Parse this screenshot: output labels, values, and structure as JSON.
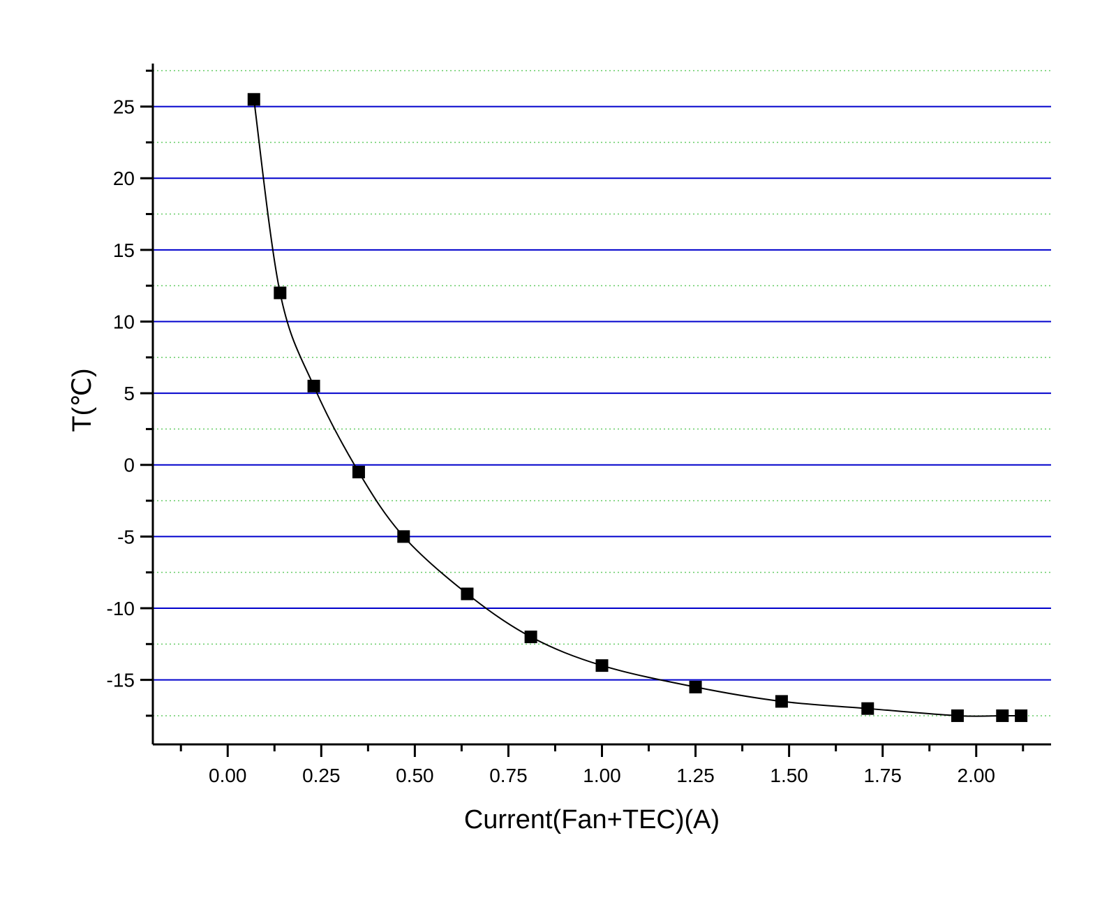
{
  "chart_data": {
    "type": "line",
    "title": "",
    "xlabel": "Current(Fan+TEC)(A)",
    "ylabel": "T(℃)",
    "xlim": [
      -0.2,
      2.2
    ],
    "ylim": [
      -19.5,
      28
    ],
    "x_ticks": [
      0.0,
      0.25,
      0.5,
      0.75,
      1.0,
      1.25,
      1.5,
      1.75,
      2.0
    ],
    "x_tick_labels": [
      "0.00",
      "0.25",
      "0.50",
      "0.75",
      "1.00",
      "1.25",
      "1.50",
      "1.75",
      "2.00"
    ],
    "y_ticks": [
      -15,
      -10,
      -5,
      0,
      5,
      10,
      15,
      20,
      25
    ],
    "y_tick_labels": [
      "-15",
      "-10",
      "-5",
      "0",
      "5",
      "10",
      "15",
      "20",
      "25"
    ],
    "grid": {
      "major": true,
      "major_color": "#0000cc",
      "minor": true,
      "minor_color": "#66cc66"
    },
    "marker": "square",
    "line_color": "#000000",
    "marker_color": "#000000",
    "series": [
      {
        "x": [
          0.07,
          0.14,
          0.23,
          0.35,
          0.47,
          0.64,
          0.81,
          1.0,
          1.25,
          1.48,
          1.71,
          1.95,
          2.07,
          2.12
        ],
        "y": [
          25.5,
          12.0,
          5.5,
          -0.5,
          -5.0,
          -9.0,
          -12.0,
          -14.0,
          -15.5,
          -16.5,
          -17.0,
          -17.5,
          -17.5,
          -17.5
        ]
      }
    ]
  }
}
